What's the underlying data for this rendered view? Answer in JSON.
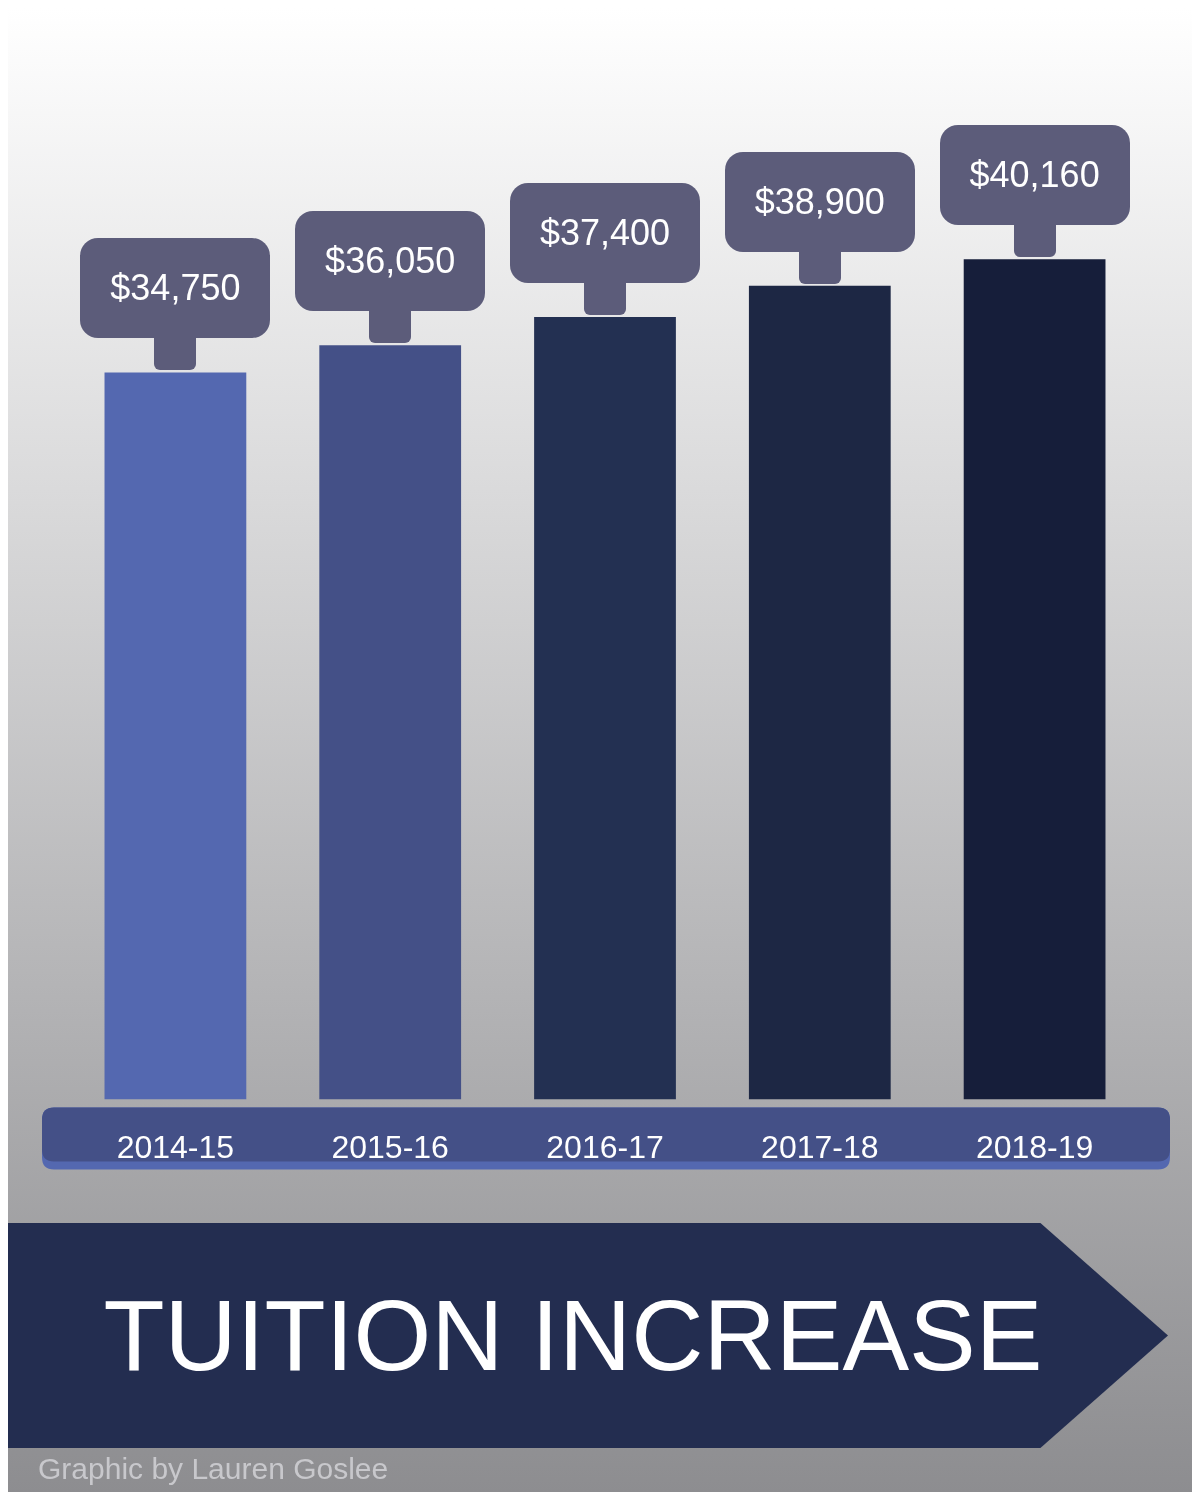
{
  "chart_data": {
    "type": "bar",
    "title": "TUITION INCREASE",
    "categories": [
      "2014-15",
      "2015-16",
      "2016-17",
      "2017-18",
      "2018-19"
    ],
    "values": [
      34750,
      36050,
      37400,
      38900,
      40160
    ],
    "colors": [
      "#5468b0",
      "#445087",
      "#233052",
      "#1d2744",
      "#161e3a"
    ],
    "value_labels": [
      "$34,750",
      "$36,050",
      "$37,400",
      "$38,900",
      "$40,160"
    ],
    "grid": false,
    "legend": false,
    "annotations": [
      "Graphic by Lauren Goslee"
    ]
  }
}
